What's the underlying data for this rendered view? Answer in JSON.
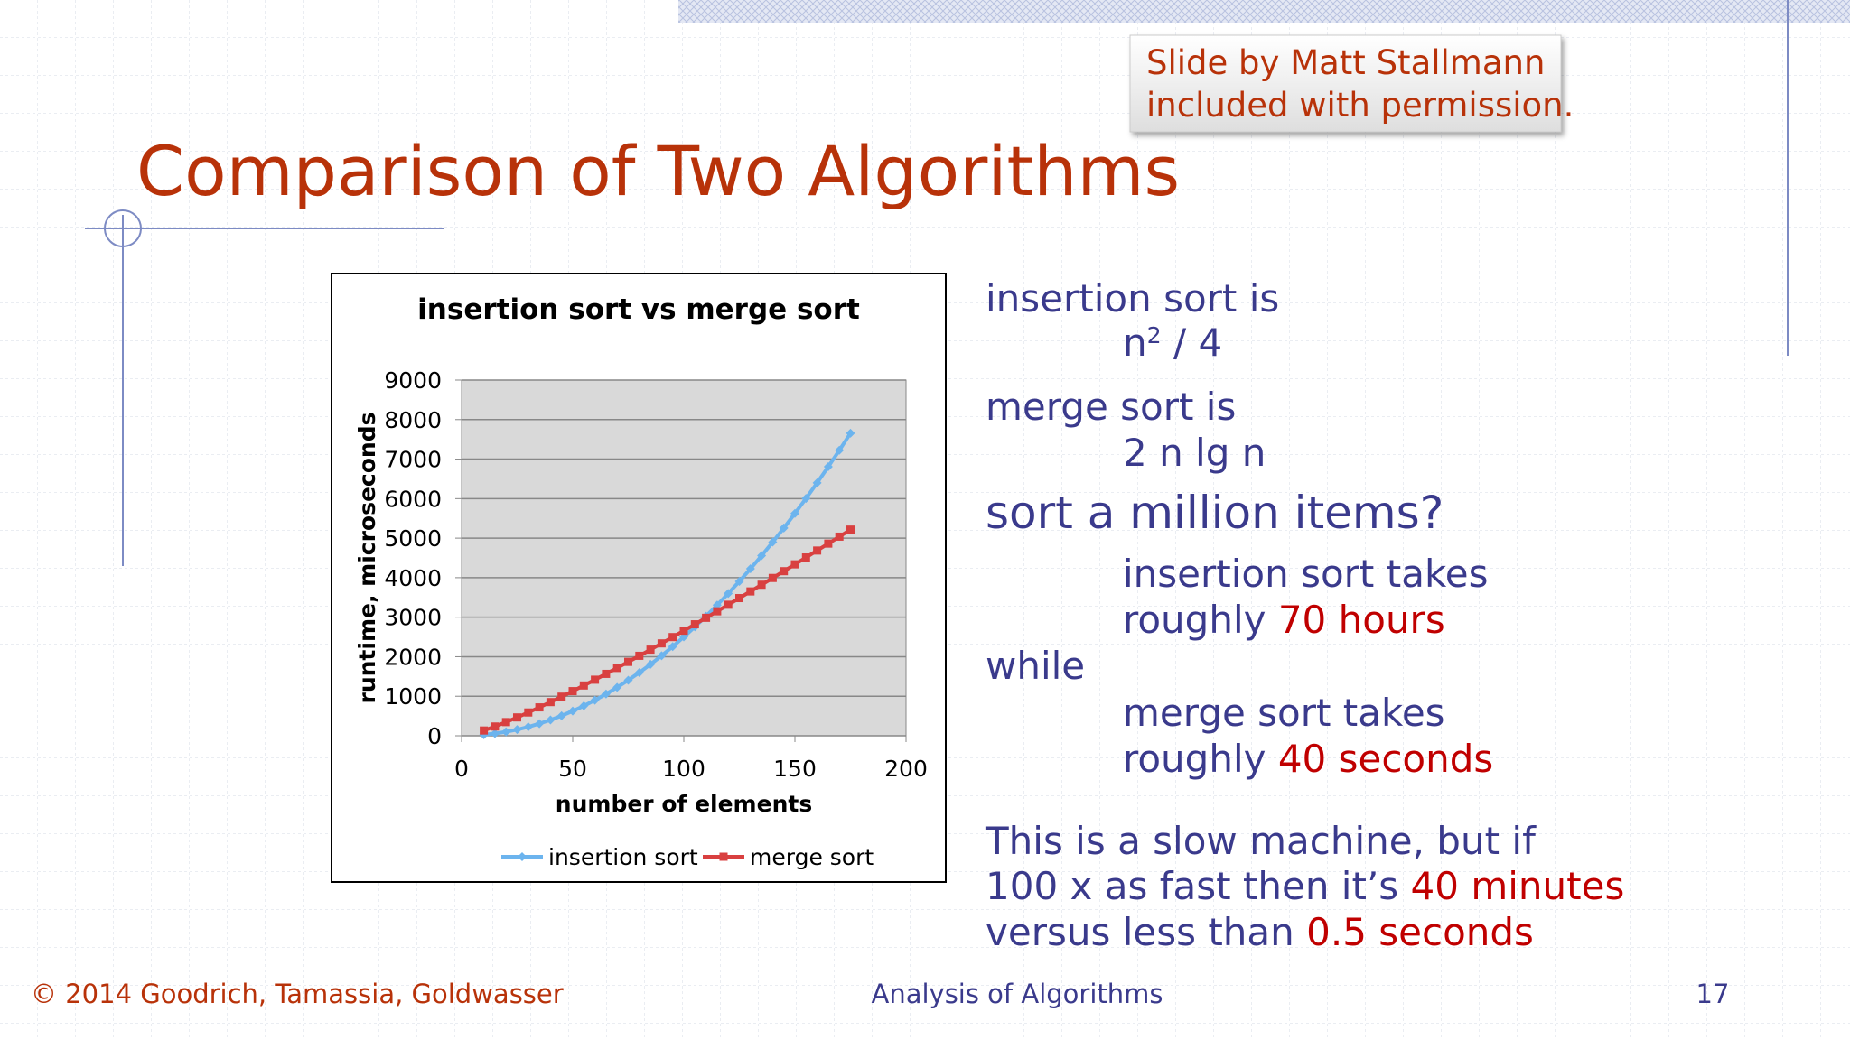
{
  "note": [
    "Slide by Matt Stallmann",
    "included with permission."
  ],
  "title": "Comparison of Two Algorithms",
  "chart_data": {
    "type": "line",
    "title": "insertion sort vs merge sort",
    "x_label": "number of elements",
    "y_label": "runtime, microseconds",
    "x": [
      10,
      15,
      20,
      25,
      30,
      35,
      40,
      45,
      50,
      55,
      60,
      65,
      70,
      75,
      80,
      85,
      90,
      95,
      100,
      105,
      110,
      115,
      120,
      125,
      130,
      135,
      140,
      145,
      150,
      155,
      160,
      165,
      170,
      175
    ],
    "series": [
      {
        "name": "insertion sort",
        "color": "#6cb4ee",
        "marker": "diamond",
        "values": [
          25,
          56,
          100,
          156,
          225,
          306,
          400,
          506,
          625,
          756,
          900,
          1056,
          1225,
          1406,
          1600,
          1806,
          2025,
          2256,
          2500,
          2756,
          3025,
          3306,
          3600,
          3906,
          4225,
          4556,
          4900,
          5256,
          5625,
          6006,
          6400,
          6806,
          7225,
          7656
        ]
      },
      {
        "name": "merge sort",
        "color": "#d94040",
        "marker": "square",
        "values": [
          133,
          234,
          346,
          464,
          589,
          718,
          852,
          989,
          1129,
          1272,
          1418,
          1566,
          1716,
          1869,
          2023,
          2179,
          2337,
          2497,
          2658,
          2820,
          2984,
          3149,
          3315,
          3483,
          3652,
          3821,
          3992,
          4164,
          4337,
          4511,
          4686,
          4862,
          5038,
          5216
        ]
      }
    ],
    "xlim": [
      0,
      200
    ],
    "xticks": [
      0,
      50,
      100,
      150,
      200
    ],
    "ylim": [
      0,
      9000
    ],
    "yticks": [
      0,
      1000,
      2000,
      3000,
      4000,
      5000,
      6000,
      7000,
      8000,
      9000
    ],
    "grid": true,
    "legend": "bottom"
  },
  "body": {
    "lines": [
      [
        "insertion sort is"
      ],
      [
        "n",
        {
          "text": "2",
          "sup": true
        },
        " / 4"
      ],
      [
        "merge sort is"
      ],
      [
        "2 n lg n"
      ],
      [
        "sort a million items?"
      ],
      [
        "insertion sort takes"
      ],
      [
        "roughly ",
        {
          "text": "70 hours",
          "color": "#c00000"
        }
      ],
      [
        "while"
      ],
      [
        "merge sort takes"
      ],
      [
        "roughly ",
        {
          "text": "40 seconds",
          "color": "#c00000"
        }
      ],
      [
        "This is a slow machine, but if"
      ],
      [
        "100 x as fast then it’s ",
        {
          "text": "40 minutes",
          "color": "#c00000"
        }
      ],
      [
        "versus less than ",
        {
          "text": "0.5 seconds",
          "color": "#c00000"
        }
      ]
    ]
  },
  "footer": {
    "left": "© 2014 Goodrich, Tamassia, Goldwasser",
    "center": "Analysis of Algorithms",
    "page": "17"
  }
}
